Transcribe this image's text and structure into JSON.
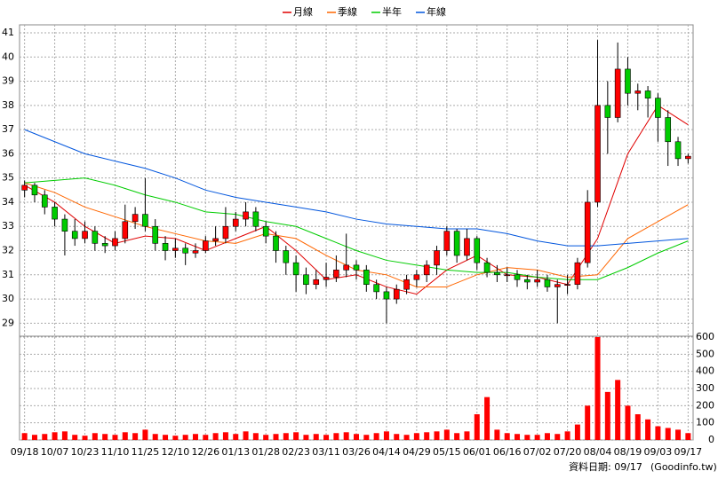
{
  "chart_data": [
    {
      "type": "candlestick",
      "legend": "top",
      "grid": true,
      "up_color": "#ff0000",
      "down_color": "#00cc00",
      "ylim": [
        28.5,
        41.33
      ],
      "yticks": [
        29,
        30,
        31,
        32,
        33,
        34,
        35,
        36,
        37,
        38,
        39,
        40,
        41
      ],
      "xlim": [
        -0.5,
        66.5
      ],
      "xticks": [
        {
          "value": 0,
          "label": "09/18"
        },
        {
          "value": 3,
          "label": "10/07"
        },
        {
          "value": 6,
          "label": "10/23"
        },
        {
          "value": 9,
          "label": "11/10"
        },
        {
          "value": 12,
          "label": "11/25"
        },
        {
          "value": 15,
          "label": "12/10"
        },
        {
          "value": 18,
          "label": "12/26"
        },
        {
          "value": 21,
          "label": "01/13"
        },
        {
          "value": 24,
          "label": "01/28"
        },
        {
          "value": 27,
          "label": "02/23"
        },
        {
          "value": 30,
          "label": "03/11"
        },
        {
          "value": 33,
          "label": "03/26"
        },
        {
          "value": 36,
          "label": "04/14"
        },
        {
          "value": 39,
          "label": "04/29"
        },
        {
          "value": 42,
          "label": "05/15"
        },
        {
          "value": 45,
          "label": "06/01"
        },
        {
          "value": 48,
          "label": "06/16"
        },
        {
          "value": 51,
          "label": "07/02"
        },
        {
          "value": 54,
          "label": "07/20"
        },
        {
          "value": 57,
          "label": "08/04"
        },
        {
          "value": 60,
          "label": "08/19"
        },
        {
          "value": 63,
          "label": "09/03"
        },
        {
          "value": 66,
          "label": "09/17"
        }
      ],
      "open": [
        34.5,
        34.7,
        34.3,
        33.8,
        33.3,
        32.8,
        32.5,
        32.8,
        32.3,
        32.2,
        32.5,
        33.2,
        33.5,
        33.0,
        32.3,
        32.0,
        32.1,
        31.9,
        32.0,
        32.4,
        32.5,
        33.0,
        33.3,
        33.6,
        33.0,
        32.6,
        32.0,
        31.5,
        31.0,
        30.6,
        30.8,
        30.9,
        31.2,
        31.4,
        31.2,
        30.6,
        30.3,
        30.0,
        30.4,
        30.8,
        31.0,
        31.4,
        32.0,
        32.8,
        31.8,
        32.5,
        31.5,
        31.1,
        31.0,
        31.0,
        30.8,
        30.7,
        30.8,
        30.5,
        30.6,
        30.6,
        31.5,
        34.0,
        38.0,
        37.5,
        39.5,
        38.5,
        38.6,
        38.3,
        37.5,
        36.5,
        35.8
      ],
      "high": [
        34.9,
        34.8,
        34.5,
        34.0,
        33.5,
        33.3,
        33.2,
        33.0,
        32.6,
        32.8,
        33.9,
        33.8,
        35.0,
        33.3,
        32.6,
        32.5,
        32.3,
        32.3,
        32.6,
        33.0,
        33.8,
        33.6,
        34.0,
        33.8,
        33.2,
        32.8,
        32.2,
        31.8,
        31.3,
        31.2,
        31.5,
        31.8,
        32.7,
        31.6,
        31.4,
        30.8,
        30.5,
        30.6,
        31.0,
        31.2,
        31.6,
        32.2,
        33.0,
        32.9,
        32.9,
        32.6,
        31.7,
        31.4,
        31.3,
        31.2,
        31.0,
        31.2,
        31.0,
        30.8,
        31.0,
        31.7,
        34.5,
        40.7,
        39.0,
        40.6,
        40.0,
        38.9,
        38.8,
        38.5,
        37.8,
        36.7,
        36.0
      ],
      "low": [
        34.2,
        34.0,
        33.5,
        33.0,
        31.8,
        32.2,
        32.3,
        32.0,
        31.9,
        32.0,
        32.3,
        32.9,
        32.8,
        32.0,
        31.6,
        31.7,
        31.4,
        31.7,
        31.9,
        32.2,
        32.3,
        32.8,
        33.0,
        32.8,
        32.3,
        31.5,
        31.0,
        30.3,
        30.2,
        30.4,
        30.5,
        30.7,
        30.9,
        30.8,
        30.3,
        30.0,
        29.0,
        29.8,
        30.2,
        30.5,
        30.7,
        31.0,
        31.8,
        31.5,
        31.6,
        31.2,
        30.9,
        30.7,
        30.7,
        30.5,
        30.4,
        30.5,
        30.3,
        29.0,
        30.2,
        30.4,
        31.3,
        33.8,
        36.0,
        37.3,
        38.0,
        37.8,
        37.5,
        36.5,
        35.5,
        35.5,
        35.6
      ],
      "close": [
        34.7,
        34.3,
        33.8,
        33.3,
        32.8,
        32.5,
        32.8,
        32.3,
        32.2,
        32.5,
        33.2,
        33.5,
        33.0,
        32.3,
        32.0,
        32.1,
        31.9,
        32.0,
        32.4,
        32.5,
        33.0,
        33.3,
        33.6,
        33.0,
        32.6,
        32.0,
        31.5,
        31.0,
        30.6,
        30.8,
        30.9,
        31.2,
        31.4,
        31.2,
        30.6,
        30.3,
        30.0,
        30.4,
        30.8,
        31.0,
        31.4,
        32.0,
        32.8,
        31.8,
        32.5,
        31.5,
        31.1,
        31.0,
        31.0,
        30.8,
        30.7,
        30.8,
        30.5,
        30.6,
        30.6,
        31.5,
        34.0,
        38.0,
        37.5,
        39.5,
        38.5,
        38.6,
        38.3,
        37.5,
        36.5,
        35.8,
        35.9
      ],
      "ma_x": [
        0,
        3,
        6,
        9,
        12,
        15,
        18,
        21,
        24,
        27,
        30,
        33,
        36,
        39,
        42,
        45,
        48,
        51,
        54,
        57,
        60,
        63,
        66
      ],
      "series": [
        {
          "name": "月線",
          "color": "#e00000",
          "values": [
            34.7,
            34.0,
            33.0,
            32.3,
            32.6,
            32.5,
            32.0,
            32.5,
            33.0,
            32.0,
            30.8,
            31.0,
            30.5,
            30.2,
            31.2,
            31.8,
            31.0,
            30.9,
            30.6,
            32.5,
            36.0,
            38.0,
            37.2
          ]
        },
        {
          "name": "季線",
          "color": "#ff6600",
          "values": [
            34.8,
            34.4,
            33.8,
            33.4,
            33.0,
            32.7,
            32.4,
            32.3,
            32.7,
            32.5,
            31.8,
            31.2,
            31.0,
            30.5,
            30.5,
            31.0,
            31.3,
            31.2,
            30.9,
            31.0,
            32.5,
            33.2,
            33.9
          ]
        },
        {
          "name": "半年",
          "color": "#00cc00",
          "values": [
            34.8,
            34.9,
            35.0,
            34.7,
            34.3,
            34.0,
            33.6,
            33.5,
            33.2,
            33.0,
            32.5,
            32.0,
            31.6,
            31.4,
            31.2,
            31.1,
            31.1,
            30.9,
            30.8,
            30.8,
            31.3,
            31.9,
            32.4
          ]
        },
        {
          "name": "年線",
          "color": "#0055dd",
          "values": [
            37.0,
            36.5,
            36.0,
            35.7,
            35.4,
            35.0,
            34.5,
            34.2,
            34.0,
            33.8,
            33.6,
            33.3,
            33.1,
            33.0,
            32.9,
            32.9,
            32.7,
            32.4,
            32.2,
            32.2,
            32.3,
            32.4,
            32.5
          ]
        }
      ]
    },
    {
      "type": "bar",
      "color": "#ff0000",
      "grid": true,
      "ylim": [
        0,
        600
      ],
      "yticks": [
        0,
        100,
        200,
        300,
        400,
        500,
        600
      ],
      "values": [
        40,
        30,
        35,
        45,
        50,
        30,
        25,
        40,
        35,
        30,
        45,
        40,
        60,
        35,
        30,
        25,
        30,
        35,
        30,
        40,
        45,
        35,
        50,
        40,
        30,
        35,
        40,
        45,
        30,
        35,
        30,
        40,
        45,
        35,
        30,
        40,
        50,
        35,
        30,
        40,
        45,
        50,
        60,
        40,
        50,
        150,
        250,
        60,
        40,
        35,
        30,
        30,
        40,
        35,
        50,
        90,
        200,
        600,
        280,
        350,
        200,
        150,
        120,
        80,
        70,
        60,
        40
      ]
    }
  ],
  "footer": {
    "date_label": "資料日期: 09/17",
    "source": "(Goodinfo.tw)"
  }
}
